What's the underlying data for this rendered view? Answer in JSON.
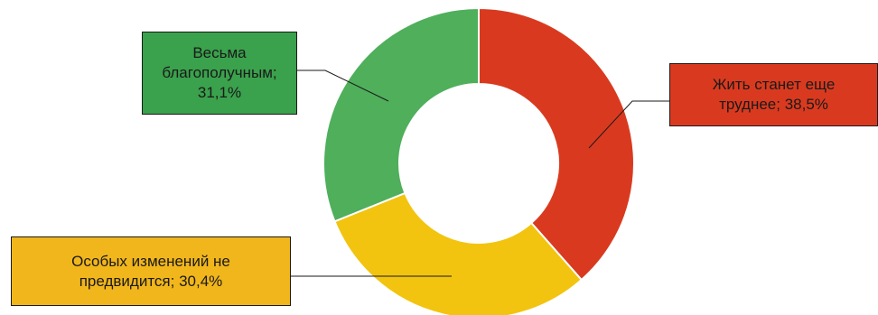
{
  "chart_data": {
    "type": "pie",
    "donut": true,
    "slices": [
      {
        "label_lines": [
          "Жить станет еще",
          "труднее; 38,5%"
        ],
        "value": 38.5,
        "color": "#d93a1f"
      },
      {
        "label_lines": [
          "Особых изменений не",
          "предвидится; 30,4%"
        ],
        "value": 30.4,
        "color": "#f2c40f"
      },
      {
        "label_lines": [
          "Весьма",
          "благополучным;",
          "31,1%"
        ],
        "value": 31.1,
        "color": "#4faf5b"
      }
    ],
    "label_box_colors": [
      "#d93a1f",
      "#f1b61b",
      "#3aa14c"
    ],
    "start_angle_deg": 0,
    "direction": "clockwise"
  }
}
